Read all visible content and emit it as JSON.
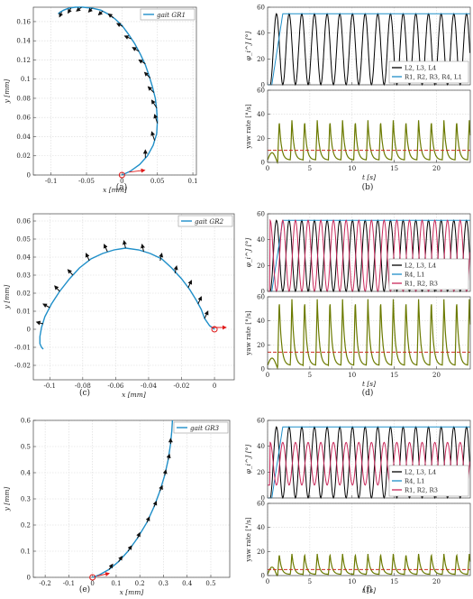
{
  "figure": {
    "captions": [
      "(a)",
      "(b)",
      "(c)",
      "(d)",
      "(e)",
      "(f)"
    ]
  },
  "chart_data": [
    {
      "id": "a",
      "type": "line",
      "title": "",
      "xlabel": "x [mm]",
      "ylabel": "y [mm]",
      "xlim": [
        -0.125,
        0.105
      ],
      "ylim": [
        0,
        0.175
      ],
      "xticks": [
        -0.1,
        -0.05,
        0,
        0.05,
        0.1
      ],
      "yticks": [
        0,
        0.02,
        0.04,
        0.06,
        0.08,
        0.1,
        0.12,
        0.14,
        0.16
      ],
      "xtick_labels": [
        "-0.1",
        "-0.05",
        "0",
        "0.05",
        "0.1"
      ],
      "ytick_labels": [
        "0",
        "0.02",
        "0.04",
        "0.06",
        "0.08",
        "0.1",
        "0.12",
        "0.14",
        "0.16"
      ],
      "grid": true,
      "legend_position": "top-right",
      "series": [
        {
          "name": "gait GR1",
          "color": "#1f8fc9",
          "x": [
            0,
            0.012,
            0.025,
            0.036,
            0.044,
            0.049,
            0.05,
            0.049,
            0.047,
            0.043,
            0.038,
            0.033,
            0.026,
            0.018,
            0.009,
            0,
            -0.01,
            -0.02,
            -0.03,
            -0.042,
            -0.055,
            -0.066,
            -0.075,
            -0.082,
            -0.087,
            -0.09
          ],
          "y": [
            0,
            0.004,
            0.011,
            0.02,
            0.031,
            0.043,
            0.056,
            0.068,
            0.08,
            0.092,
            0.104,
            0.115,
            0.126,
            0.137,
            0.147,
            0.156,
            0.163,
            0.168,
            0.172,
            0.174,
            0.175,
            0.175,
            0.174,
            0.172,
            0.17,
            0.168
          ]
        }
      ],
      "arrows": [
        {
          "x": 0.01,
          "y": 0.003,
          "dx": 0.022,
          "dy": 0.002
        },
        {
          "x": 0.033,
          "y": 0.018,
          "dx": 0.0,
          "dy": 0.008
        },
        {
          "x": 0.046,
          "y": 0.036,
          "dx": -0.004,
          "dy": 0.009
        },
        {
          "x": 0.05,
          "y": 0.054,
          "dx": -0.004,
          "dy": 0.009
        },
        {
          "x": 0.049,
          "y": 0.07,
          "dx": -0.007,
          "dy": 0.008
        },
        {
          "x": 0.045,
          "y": 0.086,
          "dx": -0.008,
          "dy": 0.006
        },
        {
          "x": 0.04,
          "y": 0.101,
          "dx": -0.008,
          "dy": 0.006
        },
        {
          "x": 0.033,
          "y": 0.116,
          "dx": -0.009,
          "dy": 0.004
        },
        {
          "x": 0.024,
          "y": 0.129,
          "dx": -0.009,
          "dy": 0.004
        },
        {
          "x": 0.013,
          "y": 0.142,
          "dx": -0.009,
          "dy": 0.003
        },
        {
          "x": 0.001,
          "y": 0.155,
          "dx": -0.008,
          "dy": 0.003
        },
        {
          "x": -0.012,
          "y": 0.164,
          "dx": -0.007,
          "dy": 0.004
        },
        {
          "x": -0.027,
          "y": 0.171,
          "dx": -0.006,
          "dy": -0.004
        },
        {
          "x": -0.042,
          "y": 0.174,
          "dx": -0.005,
          "dy": -0.004
        },
        {
          "x": -0.057,
          "y": 0.175,
          "dx": -0.007,
          "dy": -0.004
        },
        {
          "x": -0.072,
          "y": 0.174,
          "dx": -0.004,
          "dy": -0.005
        },
        {
          "x": -0.085,
          "y": 0.17,
          "dx": -0.003,
          "dy": -0.005
        }
      ],
      "start_marker": {
        "x": 0,
        "y": 0
      }
    },
    {
      "id": "b",
      "type": "line",
      "top": {
        "ylabel": "φ_i^J [°]",
        "ylim": [
          0,
          60
        ],
        "yticks": [
          0,
          20,
          40,
          60
        ],
        "xlim": [
          0,
          24
        ],
        "xticks": [
          0,
          5,
          10,
          15,
          20
        ],
        "grid": true,
        "legend_position": "bottom-right",
        "series": [
          {
            "name": "L2, L3, L4",
            "color": "#000000",
            "kind": "oscillating",
            "min": 0,
            "max": 55,
            "period": 1.5,
            "phase": 0.0
          },
          {
            "name": "R1, R2, R3, R4, L1",
            "color": "#1f8fc9",
            "kind": "saturated",
            "value": 55
          }
        ]
      },
      "bottom": {
        "xlabel": "t [s]",
        "ylabel": "yaw rate [°/s]",
        "ylim": [
          0,
          60
        ],
        "yticks": [
          0,
          20,
          40,
          60
        ],
        "xlim": [
          0,
          24
        ],
        "xticks": [
          0,
          5,
          10,
          15,
          20
        ],
        "grid": true,
        "period": 1.5,
        "peak": 35,
        "trough": 2,
        "mean": 10,
        "series_color": "#6b7a00",
        "mean_color": "#cc2a1f"
      }
    },
    {
      "id": "c",
      "type": "line",
      "title": "",
      "xlabel": "x [mm]",
      "ylabel": "y [mm]",
      "xlim": [
        -0.11,
        0.012
      ],
      "ylim": [
        -0.028,
        0.064
      ],
      "xticks": [
        -0.1,
        -0.08,
        -0.06,
        -0.04,
        -0.02,
        0
      ],
      "yticks": [
        -0.02,
        -0.01,
        0,
        0.01,
        0.02,
        0.03,
        0.04,
        0.05,
        0.06
      ],
      "xtick_labels": [
        "-0.1",
        "-0.08",
        "-0.06",
        "-0.04",
        "-0.02",
        "0"
      ],
      "ytick_labels": [
        "-0.02",
        "-0.01",
        "0",
        "0.01",
        "0.02",
        "0.03",
        "0.04",
        "0.05",
        "0.06"
      ],
      "grid": true,
      "legend_position": "top-right",
      "series": [
        {
          "name": "gait GR2",
          "color": "#1f8fc9",
          "x": [
            0,
            -0.003,
            -0.006,
            -0.008,
            -0.011,
            -0.015,
            -0.02,
            -0.026,
            -0.032,
            -0.039,
            -0.046,
            -0.054,
            -0.061,
            -0.068,
            -0.075,
            -0.082,
            -0.088,
            -0.094,
            -0.099,
            -0.103,
            -0.105,
            -0.106,
            -0.106,
            -0.105,
            -0.104
          ],
          "y": [
            0,
            0.002,
            0.006,
            0.011,
            0.016,
            0.022,
            0.028,
            0.034,
            0.039,
            0.042,
            0.044,
            0.045,
            0.044,
            0.042,
            0.039,
            0.034,
            0.028,
            0.021,
            0.014,
            0.007,
            0.001,
            -0.004,
            -0.008,
            -0.01,
            -0.011
          ]
        }
      ],
      "arrows": [
        {
          "x": -0.002,
          "y": 0.001,
          "dx": 0.009,
          "dy": 0.0
        },
        {
          "x": -0.006,
          "y": 0.006,
          "dx": 0.002,
          "dy": 0.004
        },
        {
          "x": -0.01,
          "y": 0.014,
          "dx": 0.002,
          "dy": 0.004
        },
        {
          "x": -0.016,
          "y": 0.023,
          "dx": 0.002,
          "dy": 0.004
        },
        {
          "x": -0.024,
          "y": 0.031,
          "dx": 0.001,
          "dy": 0.004
        },
        {
          "x": -0.033,
          "y": 0.038,
          "dx": 0.001,
          "dy": 0.004
        },
        {
          "x": -0.043,
          "y": 0.043,
          "dx": -0.001,
          "dy": 0.004
        },
        {
          "x": -0.054,
          "y": 0.045,
          "dx": -0.001,
          "dy": 0.004
        },
        {
          "x": -0.065,
          "y": 0.043,
          "dx": -0.002,
          "dy": 0.004
        },
        {
          "x": -0.076,
          "y": 0.038,
          "dx": -0.002,
          "dy": 0.004
        },
        {
          "x": -0.086,
          "y": 0.03,
          "dx": -0.003,
          "dy": 0.003
        },
        {
          "x": -0.094,
          "y": 0.021,
          "dx": -0.003,
          "dy": 0.003
        },
        {
          "x": -0.1,
          "y": 0.012,
          "dx": -0.004,
          "dy": 0.002
        },
        {
          "x": -0.104,
          "y": 0.003,
          "dx": -0.004,
          "dy": 0.001
        }
      ],
      "start_marker": {
        "x": 0,
        "y": 0
      }
    },
    {
      "id": "d",
      "type": "line",
      "top": {
        "ylabel": "φ_i^J [°]",
        "ylim": [
          0,
          60
        ],
        "yticks": [
          0,
          20,
          40,
          60
        ],
        "xlim": [
          0,
          24
        ],
        "xticks": [
          0,
          5,
          10,
          15,
          20
        ],
        "grid": true,
        "legend_position": "bottom-right",
        "series": [
          {
            "name": "L2, L3, L4",
            "color": "#000000",
            "kind": "oscillating",
            "min": 0,
            "max": 55,
            "period": 1.5,
            "phase": 0.0
          },
          {
            "name": "R4, L1",
            "color": "#1f8fc9",
            "kind": "saturated",
            "value": 55
          },
          {
            "name": "R1, R2, R3",
            "color": "#c8285a",
            "kind": "oscillating",
            "min": 0,
            "max": 55,
            "period": 1.5,
            "phase": 0.5
          }
        ]
      },
      "bottom": {
        "xlabel": "t [s]",
        "ylabel": "yaw rate [°/s]",
        "ylim": [
          0,
          60
        ],
        "yticks": [
          0,
          20,
          40,
          60
        ],
        "xlim": [
          0,
          24
        ],
        "xticks": [
          0,
          5,
          10,
          15,
          20
        ],
        "grid": true,
        "period": 1.5,
        "peak": 58,
        "trough": 3,
        "mean": 14,
        "series_color": "#6b7a00",
        "mean_color": "#cc2a1f"
      }
    },
    {
      "id": "e",
      "type": "line",
      "title": "",
      "xlabel": "x [mm]",
      "ylabel": "y [mm]",
      "xlim": [
        -0.25,
        0.58
      ],
      "ylim": [
        0,
        0.6
      ],
      "xticks": [
        -0.2,
        -0.1,
        0,
        0.1,
        0.2,
        0.3,
        0.4,
        0.5
      ],
      "yticks": [
        0,
        0.1,
        0.2,
        0.3,
        0.4,
        0.5,
        0.6
      ],
      "xtick_labels": [
        "-0.2",
        "-0.1",
        "0",
        "0.1",
        "0.2",
        "0.3",
        "0.4",
        "0.5"
      ],
      "ytick_labels": [
        "0",
        "0.1",
        "0.2",
        "0.3",
        "0.4",
        "0.5",
        "0.6"
      ],
      "grid": true,
      "legend_position": "top-right",
      "series": [
        {
          "name": "gait GR3",
          "color": "#1f8fc9",
          "x": [
            0,
            0.03,
            0.07,
            0.11,
            0.15,
            0.19,
            0.23,
            0.26,
            0.285,
            0.305,
            0.32,
            0.33,
            0.335,
            0.338
          ],
          "y": [
            0,
            0.01,
            0.03,
            0.06,
            0.1,
            0.15,
            0.21,
            0.27,
            0.33,
            0.39,
            0.45,
            0.51,
            0.56,
            0.6
          ]
        }
      ],
      "arrows": [
        {
          "x": 0.02,
          "y": 0.005,
          "dx": 0.05,
          "dy": 0.01
        },
        {
          "x": 0.07,
          "y": 0.03,
          "dx": 0.015,
          "dy": 0.02
        },
        {
          "x": 0.11,
          "y": 0.06,
          "dx": 0.015,
          "dy": 0.02
        },
        {
          "x": 0.15,
          "y": 0.1,
          "dx": 0.015,
          "dy": 0.02
        },
        {
          "x": 0.19,
          "y": 0.15,
          "dx": 0.01,
          "dy": 0.02
        },
        {
          "x": 0.23,
          "y": 0.21,
          "dx": 0.01,
          "dy": 0.02
        },
        {
          "x": 0.26,
          "y": 0.27,
          "dx": 0.01,
          "dy": 0.02
        },
        {
          "x": 0.285,
          "y": 0.33,
          "dx": 0.01,
          "dy": 0.02
        },
        {
          "x": 0.305,
          "y": 0.39,
          "dx": 0.005,
          "dy": 0.02
        },
        {
          "x": 0.32,
          "y": 0.45,
          "dx": 0.005,
          "dy": 0.02
        },
        {
          "x": 0.33,
          "y": 0.51,
          "dx": 0.0,
          "dy": 0.02
        }
      ],
      "start_marker": {
        "x": 0,
        "y": 0
      }
    },
    {
      "id": "f",
      "type": "line",
      "top": {
        "ylabel": "φ_i^J [°]",
        "ylim": [
          0,
          60
        ],
        "yticks": [
          0,
          20,
          40,
          60
        ],
        "xlim": [
          0,
          24
        ],
        "xticks": [
          0,
          5,
          10,
          15,
          20
        ],
        "grid": true,
        "legend_position": "bottom-right",
        "series": [
          {
            "name": "L2, L3, L4",
            "color": "#000000",
            "kind": "oscillating",
            "min": 0,
            "max": 55,
            "period": 1.5,
            "phase": 0.0
          },
          {
            "name": "R4, L1",
            "color": "#1f8fc9",
            "kind": "saturated",
            "value": 55
          },
          {
            "name": "R1, R2, R3",
            "color": "#c8285a",
            "kind": "oscillating",
            "min": 10,
            "max": 43,
            "period": 1.5,
            "phase": 0.5
          }
        ]
      },
      "bottom": {
        "xlabel": "t [s]",
        "ylabel": "yaw rate [°/s]",
        "ylim": [
          0,
          60
        ],
        "yticks": [
          0,
          20,
          40,
          60
        ],
        "xlim": [
          0,
          24
        ],
        "xticks": [
          0,
          5,
          10,
          15,
          20
        ],
        "grid": true,
        "period": 1.5,
        "peak": 18,
        "trough": 1,
        "mean": 5,
        "series_color": "#6b7a00",
        "mean_color": "#cc2a1f"
      }
    }
  ]
}
